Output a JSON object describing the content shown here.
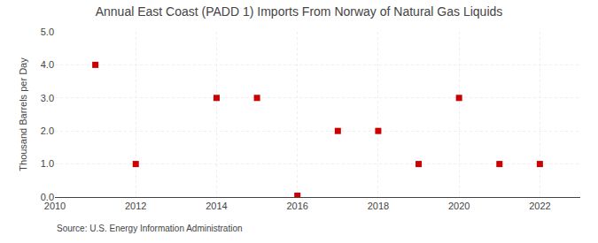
{
  "chart_data": {
    "type": "scatter",
    "title": "Annual East Coast (PADD 1) Imports From Norway of Natural Gas Liquids",
    "ylabel": "Thousand Barrels per Day",
    "annotations": [
      "Source: U.S. Energy Information Administration"
    ],
    "x": [
      2011,
      2012,
      2014,
      2015,
      2016,
      2017,
      2018,
      2019,
      2020,
      2021,
      2022
    ],
    "values": [
      4.0,
      1.0,
      3.0,
      3.0,
      0.04,
      2.0,
      2.0,
      1.0,
      3.0,
      1.0,
      1.0
    ],
    "color": "#cc0000",
    "marker": "square",
    "xlim": [
      2010,
      2023
    ],
    "xticks": [
      2010,
      2012,
      2014,
      2016,
      2018,
      2020,
      2022
    ],
    "ylim": [
      0.0,
      5.0
    ],
    "yticks": [
      {
        "value": 0.0,
        "label": "0.0"
      },
      {
        "value": 1.0,
        "label": "1.0"
      },
      {
        "value": 2.0,
        "label": "2.0"
      },
      {
        "value": 3.0,
        "label": "3.0"
      },
      {
        "value": 4.0,
        "label": "4.0"
      },
      {
        "value": 5.0,
        "label": "5.0"
      }
    ],
    "grid": true
  }
}
